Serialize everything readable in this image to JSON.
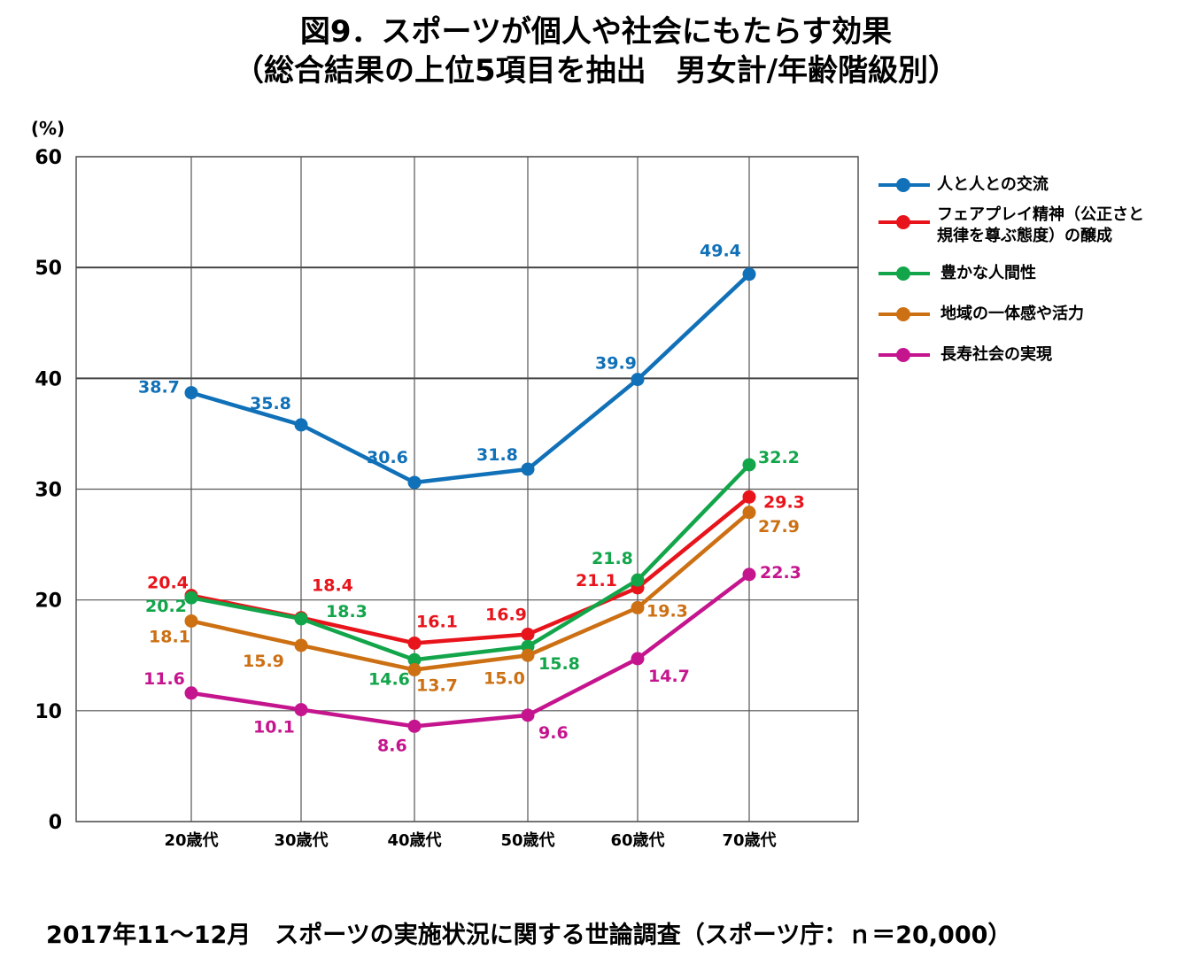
{
  "title": {
    "line1": "図9．スポーツが個人や社会にもたらす効果",
    "line2": "（総合結果の上位5項目を抽出　男女計/年齢階級別）"
  },
  "footer": "2017年11～12月　スポーツの実施状況に関する世論調査（スポーツ庁：ｎ＝20,000）",
  "chart_data": {
    "type": "line",
    "categories": [
      "20歳代",
      "30歳代",
      "40歳代",
      "50歳代",
      "60歳代",
      "70歳代"
    ],
    "ylabel": "(%)",
    "ylim": [
      0,
      60
    ],
    "yticks": [
      0,
      10,
      20,
      30,
      40,
      50,
      60
    ],
    "grid": true,
    "legend_position": "right",
    "series": [
      {
        "name": "人と人との交流",
        "color": "#1070B8",
        "values": [
          38.7,
          35.8,
          30.6,
          31.8,
          39.9,
          49.4
        ],
        "labels": [
          "38.7",
          "35.8",
          "30.6",
          "31.8",
          "39.9",
          "49.4"
        ]
      },
      {
        "name": "フェアプレイ精神（公正さと規律を尊ぶ態度）の醸成",
        "color": "#E8141B",
        "values": [
          20.4,
          18.4,
          16.1,
          16.9,
          21.1,
          29.3
        ],
        "labels": [
          "20.4",
          "18.4",
          "16.1",
          "16.9",
          "21.1",
          "29.3"
        ]
      },
      {
        "name": "豊かな人間性",
        "color": "#12A54A",
        "values": [
          20.2,
          18.3,
          14.6,
          15.8,
          21.8,
          32.2
        ],
        "labels": [
          "20.2",
          "18.3",
          "14.6",
          "15.8",
          "21.8",
          "32.2"
        ]
      },
      {
        "name": "地域の一体感や活力",
        "color": "#CC7013",
        "values": [
          18.1,
          15.9,
          13.7,
          15.0,
          19.3,
          27.9
        ],
        "labels": [
          "18.1",
          "15.9",
          "13.7",
          "15.0",
          "19.3",
          "27.9"
        ]
      },
      {
        "name": "長寿社会の実現",
        "color": "#C5158E",
        "values": [
          11.6,
          10.1,
          8.6,
          9.6,
          14.7,
          22.3
        ],
        "labels": [
          "11.6",
          "10.1",
          "8.6",
          "9.6",
          "14.7",
          "22.3"
        ]
      }
    ]
  },
  "legend": {
    "items": [
      {
        "line1": "人と人との交流",
        "line2": ""
      },
      {
        "line1": "フェアプレイ精神（公正さと",
        "line2": "規律を尊ぶ態度）の醸成"
      },
      {
        "line1": "豊かな人間性",
        "line2": ""
      },
      {
        "line1": "地域の一体感や活力",
        "line2": ""
      },
      {
        "line1": "長寿社会の実現",
        "line2": ""
      }
    ]
  }
}
